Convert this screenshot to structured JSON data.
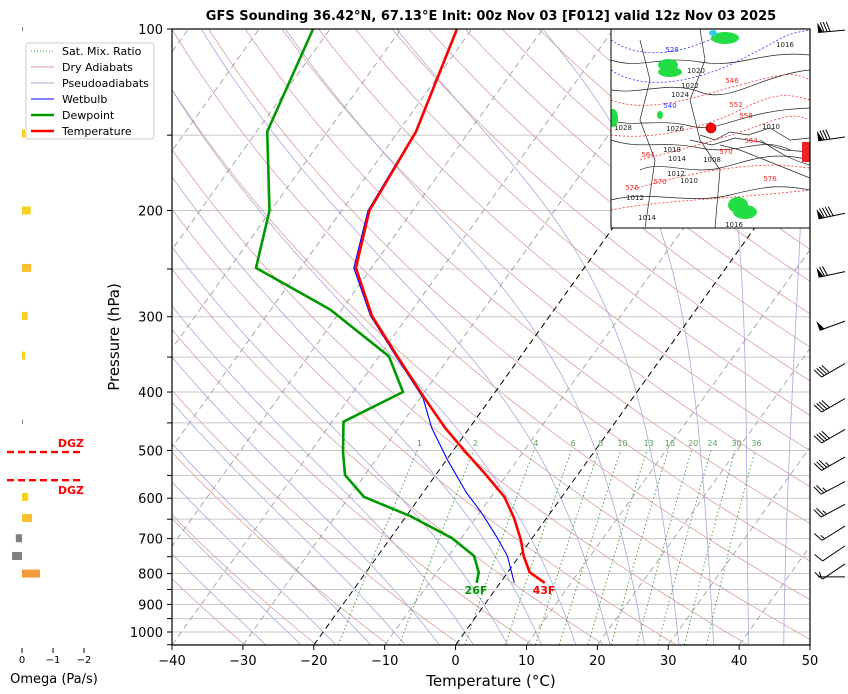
{
  "title": "GFS Sounding 36.42°N, 67.13°E Init: 00z Nov 03 [F012] valid 12z Nov 03 2025",
  "legend": [
    {
      "label": "Sat. Mix. Ratio",
      "color": "#2ca02c",
      "style": "dotted"
    },
    {
      "label": "Dry Adiabats",
      "color": "#d9a0a0",
      "style": "solid-thin"
    },
    {
      "label": "Pseudoadiabats",
      "color": "#a8a8dc",
      "style": "solid-thin"
    },
    {
      "label": "Wetbulb",
      "color": "#0000ff",
      "style": "solid"
    },
    {
      "label": "Dewpoint",
      "color": "#009900",
      "style": "solid-thick"
    },
    {
      "label": "Temperature",
      "color": "#ff0000",
      "style": "solid-thick"
    }
  ],
  "chart_data": {
    "type": "line",
    "subtype": "skew-T log-P",
    "title": "GFS Sounding 36.42°N, 67.13°E Init: 00z Nov 03 [F012] valid 12z Nov 03 2025",
    "xlabel": "Temperature (°C)",
    "ylabel": "Pressure (hPa)",
    "xlim": [
      -40,
      50
    ],
    "ylim": [
      1050,
      100
    ],
    "y_scale": "log",
    "xticks": [
      "−40",
      "−30",
      "−20",
      "−10",
      "0",
      "10",
      "20",
      "30",
      "40",
      "50"
    ],
    "xtick_values": [
      -40,
      -30,
      -20,
      -10,
      0,
      10,
      20,
      30,
      40,
      50
    ],
    "yticks": [
      "100",
      "200",
      "300",
      "400",
      "500",
      "600",
      "700",
      "800",
      "900",
      "1000"
    ],
    "ytick_values": [
      100,
      200,
      300,
      400,
      500,
      600,
      700,
      800,
      900,
      1000
    ],
    "grid": true,
    "legend_position": "upper-left (outside plot, over omega panel)",
    "highlighted_isotherms": [
      0,
      -20
    ],
    "series": [
      {
        "name": "Temperature",
        "color": "#ff0000",
        "points": [
          [
            829,
            6.3
          ],
          [
            796,
            3.1
          ],
          [
            748,
            0.6
          ],
          [
            704,
            -1.4
          ],
          [
            647,
            -4.6
          ],
          [
            597,
            -8.1
          ],
          [
            549,
            -12.9
          ],
          [
            503,
            -18.1
          ],
          [
            459,
            -23.4
          ],
          [
            409,
            -29.4
          ],
          [
            347,
            -37.7
          ],
          [
            299,
            -45.1
          ],
          [
            249,
            -52.2
          ],
          [
            200,
            -56.1
          ],
          [
            148,
            -57.5
          ],
          [
            100,
            -62.1
          ]
        ]
      },
      {
        "name": "Dewpoint",
        "color": "#009900",
        "points": [
          [
            829,
            -3.3
          ],
          [
            796,
            -4.1
          ],
          [
            748,
            -6.4
          ],
          [
            699,
            -11.3
          ],
          [
            642,
            -19.5
          ],
          [
            597,
            -27.9
          ],
          [
            549,
            -32.8
          ],
          [
            503,
            -35.4
          ],
          [
            448,
            -38.4
          ],
          [
            400,
            -33.0
          ],
          [
            349,
            -38.6
          ],
          [
            292,
            -51.6
          ],
          [
            249,
            -66.3
          ],
          [
            200,
            -70.2
          ],
          [
            148,
            -78.5
          ],
          [
            100,
            -82.4
          ]
        ]
      },
      {
        "name": "Wetbulb",
        "color": "#0000ff",
        "points": [
          [
            829,
            2.0
          ],
          [
            748,
            -1.7
          ],
          [
            696,
            -5.1
          ],
          [
            637,
            -9.5
          ],
          [
            586,
            -14.0
          ],
          [
            518,
            -19.9
          ],
          [
            459,
            -25.3
          ],
          [
            409,
            -29.6
          ],
          [
            347,
            -37.9
          ],
          [
            299,
            -45.3
          ],
          [
            249,
            -52.5
          ],
          [
            200,
            -56.3
          ],
          [
            148,
            -57.6
          ],
          [
            100,
            -62.2
          ]
        ]
      }
    ],
    "surface_labels": {
      "dewpoint": "26F",
      "temperature": "43F"
    },
    "mixing_ratio_lines": [
      "1",
      "2",
      "4",
      "6",
      "8",
      "10",
      "13",
      "16",
      "20",
      "24",
      "30",
      "36"
    ],
    "wind_barbs": [
      {
        "p": 100,
        "dir": 265,
        "speed_kt": 80
      },
      {
        "p": 150,
        "dir": 262,
        "speed_kt": 80
      },
      {
        "p": 200,
        "dir": 258,
        "speed_kt": 90
      },
      {
        "p": 250,
        "dir": 258,
        "speed_kt": 70
      },
      {
        "p": 300,
        "dir": 250,
        "speed_kt": 50
      },
      {
        "p": 350,
        "dir": 240,
        "speed_kt": 40
      },
      {
        "p": 400,
        "dir": 240,
        "speed_kt": 40
      },
      {
        "p": 450,
        "dir": 240,
        "speed_kt": 40
      },
      {
        "p": 500,
        "dir": 240,
        "speed_kt": 35
      },
      {
        "p": 550,
        "dir": 242,
        "speed_kt": 25
      },
      {
        "p": 600,
        "dir": 242,
        "speed_kt": 25
      },
      {
        "p": 650,
        "dir": 238,
        "speed_kt": 15
      },
      {
        "p": 700,
        "dir": 236,
        "speed_kt": 10
      },
      {
        "p": 750,
        "dir": 236,
        "speed_kt": 10
      },
      {
        "p": 810,
        "dir": 270,
        "speed_kt": 5
      }
    ],
    "omega": {
      "xlabel": "Omega (Pa/s)",
      "xticks": [
        "0",
        "−1",
        "−2"
      ],
      "xtick_values": [
        0,
        -1,
        -2
      ],
      "xlim": [
        0.5,
        -2.5
      ],
      "values": [
        {
          "p": 100,
          "omega": 0.0
        },
        {
          "p": 149,
          "omega": -0.1
        },
        {
          "p": 200,
          "omega": -0.28
        },
        {
          "p": 249,
          "omega": -0.3
        },
        {
          "p": 299,
          "omega": -0.18
        },
        {
          "p": 348,
          "omega": -0.1
        },
        {
          "p": 448,
          "omega": 0.0
        },
        {
          "p": 597,
          "omega": -0.2
        },
        {
          "p": 647,
          "omega": -0.32
        },
        {
          "p": 699,
          "omega": 0.2
        },
        {
          "p": 748,
          "omega": 0.32
        },
        {
          "p": 800,
          "omega": -0.58
        }
      ],
      "colors": {
        "positive": "#808080",
        "weak_ascent": "#f9d01e",
        "moderate_ascent": "#f8c030",
        "strong_ascent": "#f59a3b"
      }
    },
    "dgz": {
      "label": "DGZ",
      "top_p": 503,
      "bottom_p": 560,
      "color": "#ff0000"
    }
  },
  "inset_map": {
    "labels": [
      "528",
      "1020",
      "1022",
      "1024",
      "540",
      "546",
      "552",
      "558",
      "1026",
      "1028",
      "1018",
      "1014",
      "1008",
      "564",
      "564",
      "570",
      "1010",
      "1012",
      "1010",
      "570",
      "576",
      "576",
      "1012",
      "1016",
      "1014",
      "1016"
    ],
    "marker_color": "#ff0000"
  },
  "colors": {
    "temperature": "#ff0000",
    "dewpoint": "#009900",
    "wetbulb": "#0000ff",
    "dry_adiabat": "#d9a0a0",
    "pseudoadiabat": "#a8a8dc",
    "mixing_ratio": "#3a9a3a",
    "isotherm": "#a0a0a0",
    "isobar": "#c8c8c8"
  }
}
